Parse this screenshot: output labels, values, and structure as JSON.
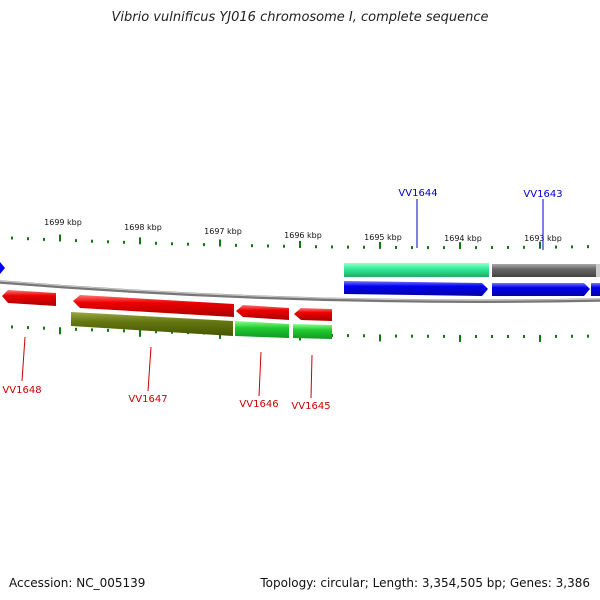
{
  "title": "Vibrio vulnificus YJ016 chromosome I, complete sequence",
  "accession_text": "Accession: NC_005139",
  "summary_text": "Topology: circular; Length: 3,354,505 bp; Genes: 3,386",
  "colors": {
    "forward_cds": "#0000ee",
    "reverse_cds": "#ee0000",
    "teal_track": "#33ee99",
    "gray_track": "#666666",
    "olive_track": "#667711",
    "green_track": "#22cc33",
    "tick": "#117711",
    "backbone": "#888888"
  },
  "scale_labels": [
    "1699 kbp",
    "1698 kbp",
    "1697 kbp",
    "1696 kbp",
    "1695 kbp",
    "1694 kbp",
    "1693 kbp"
  ],
  "gene_labels": {
    "top": [
      "VV1644",
      "VV1643"
    ],
    "bottom": [
      "VV1648",
      "VV1647",
      "VV1646",
      "VV1645"
    ]
  }
}
